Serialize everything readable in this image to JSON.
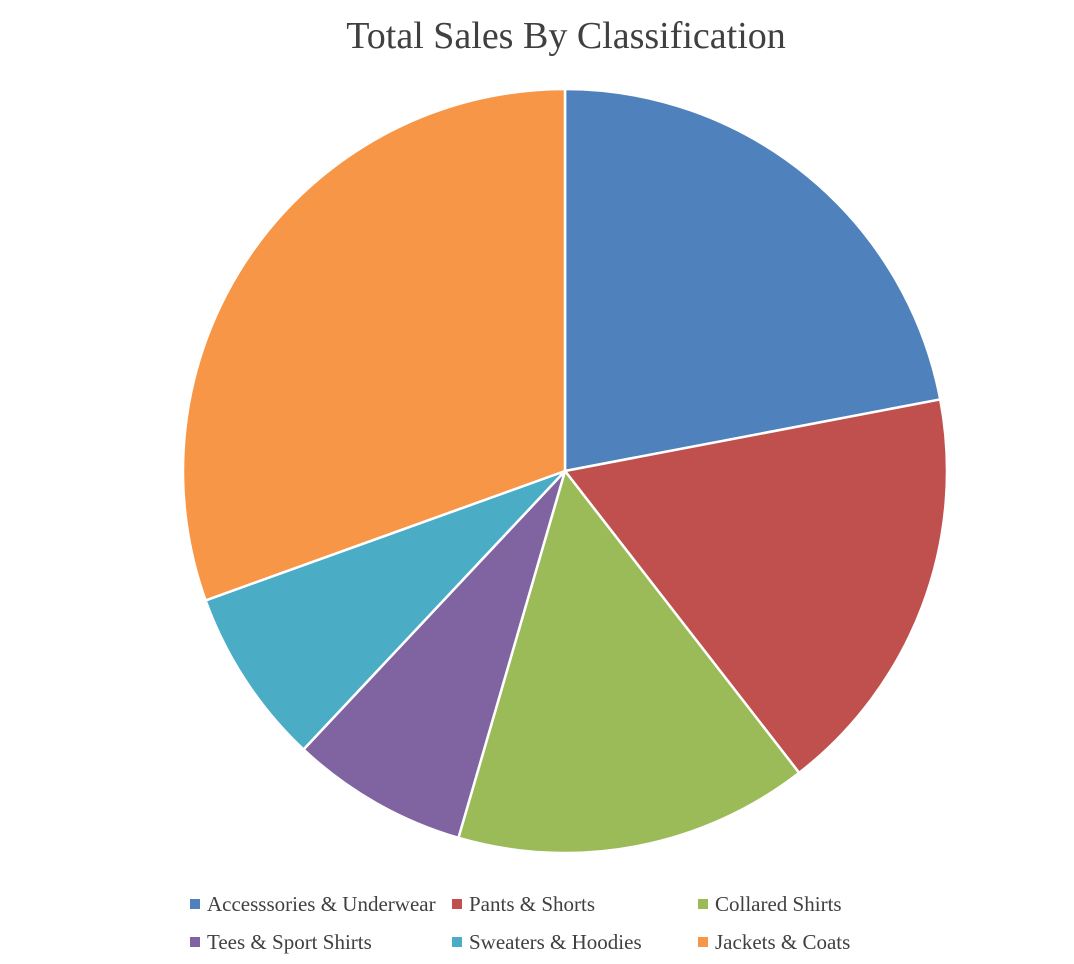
{
  "chart_data": {
    "type": "pie",
    "title": "Total Sales By Classification",
    "legend_position": "bottom",
    "slices": [
      {
        "name": "Accesssories & Underwear",
        "value": 22.0,
        "color": "#4F81BD"
      },
      {
        "name": "Pants & Shorts",
        "value": 17.5,
        "color": "#C0504D"
      },
      {
        "name": "Collared Shirts",
        "value": 15.0,
        "color": "#9BBB59"
      },
      {
        "name": "Tees & Sport Shirts",
        "value": 7.5,
        "color": "#8064A2"
      },
      {
        "name": "Sweaters & Hoodies",
        "value": 7.5,
        "color": "#4BACC6"
      },
      {
        "name": "Jackets & Coats",
        "value": 30.5,
        "color": "#F79646"
      }
    ]
  }
}
